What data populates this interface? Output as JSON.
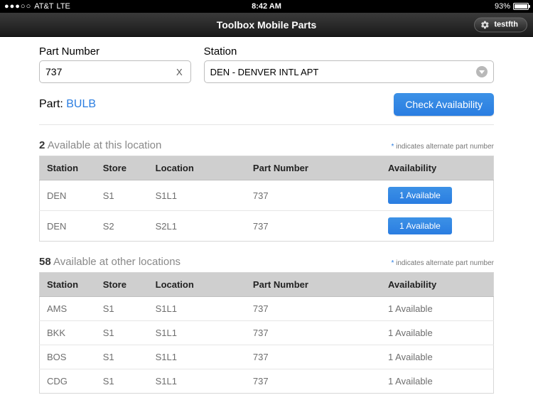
{
  "status": {
    "dots": "●●●○○",
    "carrier": "AT&T",
    "network": "LTE",
    "time": "8:42 AM",
    "battery_pct": "93%"
  },
  "nav": {
    "title": "Toolbox Mobile Parts",
    "username": "testfth"
  },
  "form": {
    "part_label": "Part Number",
    "part_value": "737",
    "station_label": "Station",
    "station_value": "DEN - DENVER INTL APT"
  },
  "part_row": {
    "label": "Part:",
    "name": "BULB",
    "check_btn": "Check Availability"
  },
  "note": "indicates alternate part number",
  "section1": {
    "count": "2",
    "text": "Available at this location"
  },
  "section2": {
    "count": "58",
    "text": "Available at other locations"
  },
  "headers": {
    "station": "Station",
    "store": "Store",
    "location": "Location",
    "part": "Part Number",
    "avail": "Availability"
  },
  "local_rows": [
    {
      "station": "DEN",
      "store": "S1",
      "location": "S1L1",
      "part": "737",
      "avail": "1 Available"
    },
    {
      "station": "DEN",
      "store": "S2",
      "location": "S2L1",
      "part": "737",
      "avail": "1 Available"
    }
  ],
  "other_rows": [
    {
      "station": "AMS",
      "store": "S1",
      "location": "S1L1",
      "part": "737",
      "avail": "1 Available"
    },
    {
      "station": "BKK",
      "store": "S1",
      "location": "S1L1",
      "part": "737",
      "avail": "1 Available"
    },
    {
      "station": "BOS",
      "store": "S1",
      "location": "S1L1",
      "part": "737",
      "avail": "1 Available"
    },
    {
      "station": "CDG",
      "store": "S1",
      "location": "S1L1",
      "part": "737",
      "avail": "1 Available"
    }
  ]
}
